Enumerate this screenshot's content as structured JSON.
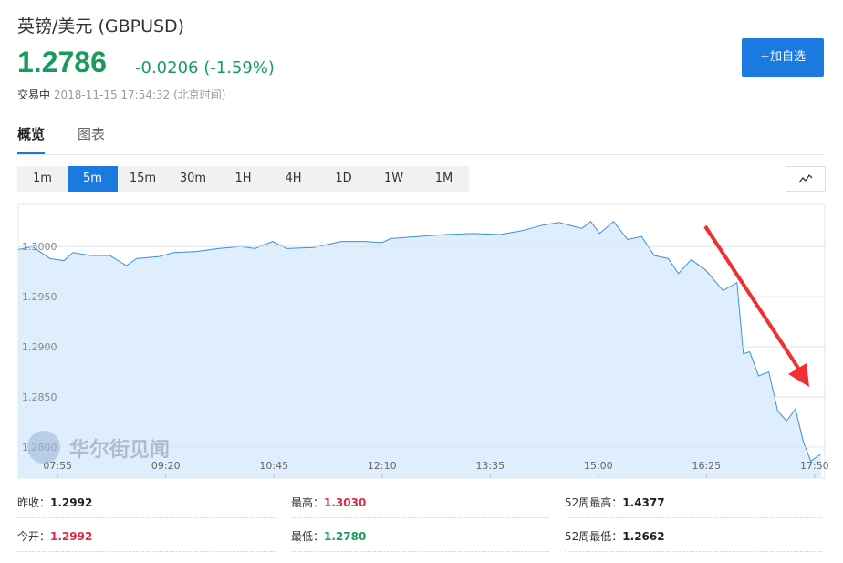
{
  "header": {
    "title": "英镑/美元  (GBPUSD)",
    "price": "1.2786",
    "change": "-0.0206 (-1.59%)",
    "status": "交易中",
    "timestamp": "2018-11-15 17:54:32",
    "timezone": "(北京时间)",
    "button": "+加自选"
  },
  "tabs": [
    "概览",
    "图表"
  ],
  "intervals": [
    "1m",
    "5m",
    "15m",
    "30m",
    "1H",
    "4H",
    "1D",
    "1W",
    "1M"
  ],
  "watermark": "华尔街见闻",
  "chart_data": {
    "type": "area",
    "color": "#3d8fe0",
    "x": [
      "07:24",
      "07:35",
      "07:49",
      "08:00",
      "08:07",
      "08:21",
      "08:36",
      "08:49",
      "08:57",
      "09:15",
      "09:26",
      "09:44",
      "10:01",
      "10:19",
      "10:30",
      "10:44",
      "10:55",
      "11:16",
      "11:38",
      "11:56",
      "12:10",
      "12:17",
      "12:39",
      "13:00",
      "13:21",
      "13:43",
      "14:01",
      "14:15",
      "14:29",
      "14:47",
      "14:54",
      "15:01",
      "15:12",
      "15:23",
      "15:34",
      "15:44",
      "15:55",
      "16:03",
      "16:13",
      "16:24",
      "16:38",
      "16:49",
      "16:54",
      "16:59",
      "17:06",
      "17:14",
      "17:21",
      "17:28",
      "17:35",
      "17:41",
      "17:47",
      "17:55"
    ],
    "series": [
      {
        "values": [
          1.2997,
          1.3,
          1.2988,
          1.2986,
          1.2994,
          1.2991,
          1.2991,
          1.2981,
          1.2988,
          1.299,
          1.2994,
          1.2995,
          1.2998,
          1.3,
          1.2998,
          1.3005,
          1.2998,
          1.2999,
          1.3005,
          1.3005,
          1.3004,
          1.3008,
          1.301,
          1.3012,
          1.3013,
          1.3012,
          1.3016,
          1.3021,
          1.3024,
          1.3018,
          1.3025,
          1.3013,
          1.3025,
          1.3007,
          1.301,
          1.2991,
          1.2988,
          1.2973,
          1.2987,
          1.2977,
          1.2956,
          1.2964,
          1.2893,
          1.2895,
          1.2871,
          1.2875,
          1.2836,
          1.2826,
          1.2838,
          1.2806,
          1.2786,
          1.2793
        ]
      }
    ],
    "xlim": [
      "07:24",
      "17:58"
    ],
    "xticks": [
      "07:55",
      "09:20",
      "10:45",
      "12:10",
      "13:35",
      "15:00",
      "16:25",
      "17:50"
    ],
    "ylim": [
      1.2769,
      1.3042
    ],
    "yticks": [
      {
        "value": 1.3,
        "label": "1.3000"
      },
      {
        "value": 1.295,
        "label": "1.2950"
      },
      {
        "value": 1.29,
        "label": "1.2900"
      },
      {
        "value": 1.285,
        "label": "1.2850"
      },
      {
        "value": 1.28,
        "label": "1.2800"
      }
    ],
    "grid": true
  },
  "stats": [
    [
      {
        "label": "昨收：",
        "value": "1.2992"
      },
      {
        "label": "最高：",
        "value": "1.3030"
      },
      {
        "label": "52周最高：",
        "value": "1.4377"
      }
    ],
    [
      {
        "label": "今开：",
        "value": "1.2992"
      },
      {
        "label": "最低：",
        "value": "1.2780"
      },
      {
        "label": "52周最低：",
        "value": "1.2662"
      }
    ]
  ]
}
